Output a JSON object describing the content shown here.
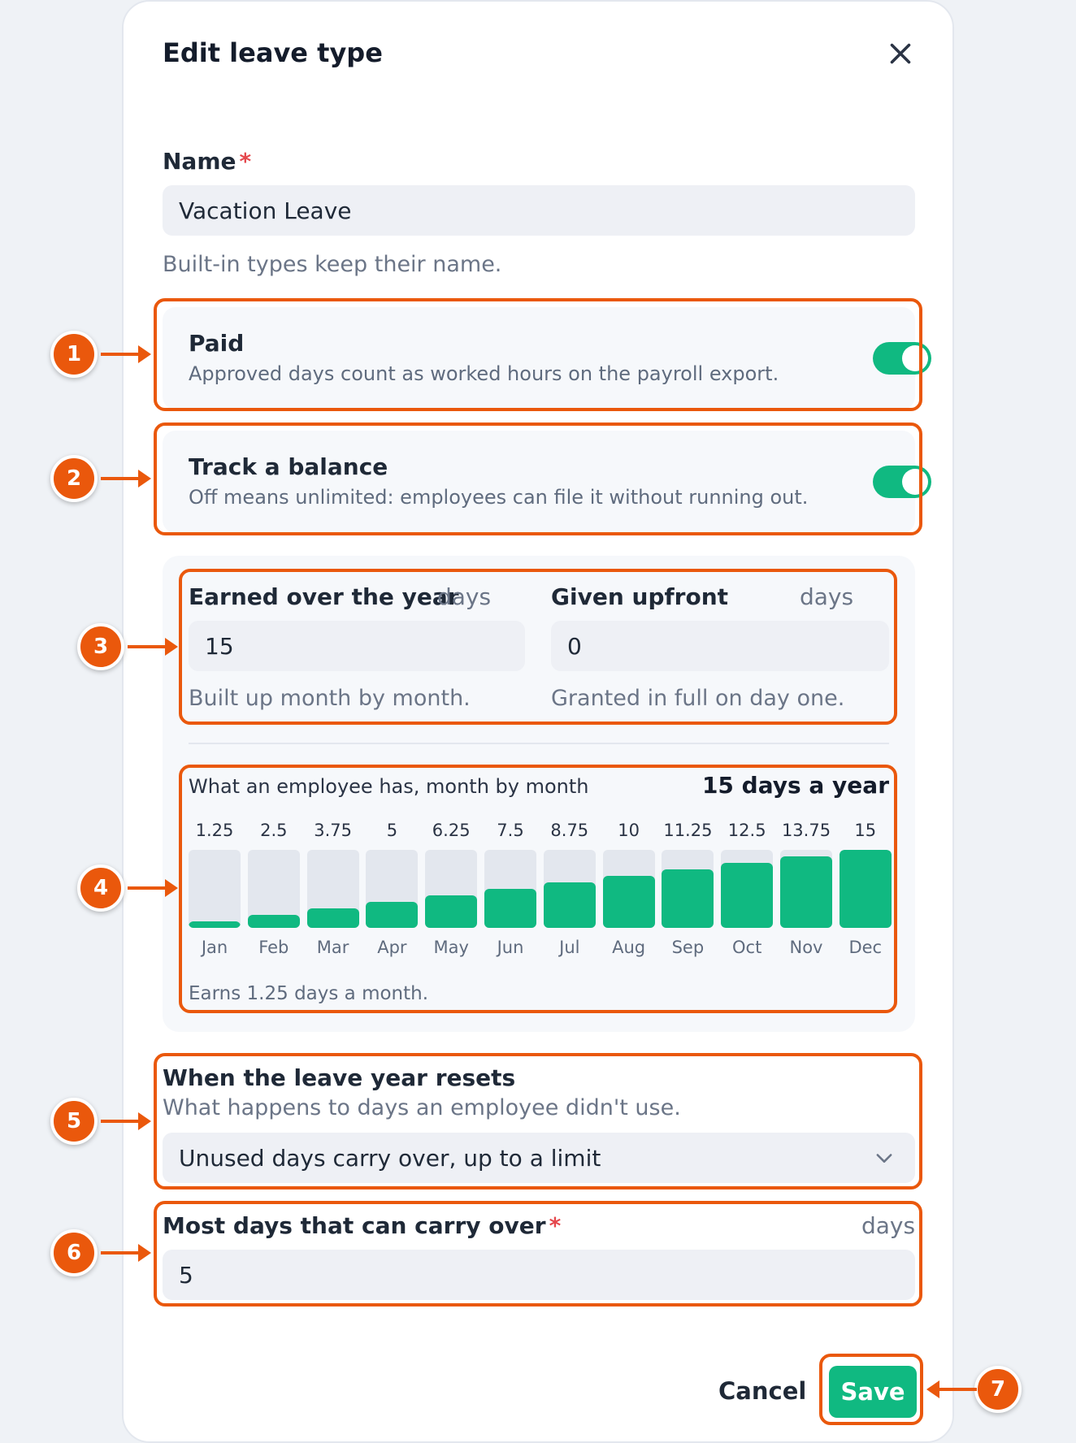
{
  "dialog": {
    "title": "Edit leave type"
  },
  "name_field": {
    "label": "Name",
    "required_mark": "*",
    "value": "Vacation Leave",
    "hint": "Built-in types keep their name."
  },
  "paid": {
    "title": "Paid",
    "description": "Approved days count as worked hours on the payroll export.",
    "enabled": true
  },
  "track_balance": {
    "title": "Track a balance",
    "description": "Off means unlimited: employees can file it without running out.",
    "enabled": true
  },
  "earned": {
    "label": "Earned over the year",
    "unit": "days",
    "value": "15",
    "hint": "Built up month by month."
  },
  "upfront": {
    "label": "Given upfront",
    "unit": "days",
    "value": "0",
    "hint": "Granted in full on day one."
  },
  "accrual_preview": {
    "heading": "What an employee has, month by month",
    "total": "15 days a year",
    "footer": "Earns 1.25 days a month."
  },
  "chart_data": {
    "type": "bar",
    "title": "What an employee has, month by month",
    "categories": [
      "Jan",
      "Feb",
      "Mar",
      "Apr",
      "May",
      "Jun",
      "Jul",
      "Aug",
      "Sep",
      "Oct",
      "Nov",
      "Dec"
    ],
    "values": [
      1.25,
      2.5,
      3.75,
      5,
      6.25,
      7.5,
      8.75,
      10,
      11.25,
      12.5,
      13.75,
      15
    ],
    "value_labels": [
      "1.25",
      "2.5",
      "3.75",
      "5",
      "6.25",
      "7.5",
      "8.75",
      "10",
      "11.25",
      "12.5",
      "13.75",
      "15"
    ],
    "ylim": [
      0,
      15
    ],
    "grid": false,
    "colors": {
      "fill": "#10b981",
      "track": "#e3e7ee"
    }
  },
  "reset": {
    "title": "When the leave year resets",
    "description": "What happens to days an employee didn't use.",
    "selected": "Unused days carry over, up to a limit"
  },
  "carry_over": {
    "label": "Most days that can carry over",
    "required_mark": "*",
    "unit": "days",
    "value": "5"
  },
  "actions": {
    "cancel": "Cancel",
    "save": "Save"
  },
  "annotations": [
    "1",
    "2",
    "3",
    "4",
    "5",
    "6",
    "7"
  ],
  "colors": {
    "accent": "#10b981",
    "annotation": "#ea580c",
    "required": "#e5484d"
  }
}
